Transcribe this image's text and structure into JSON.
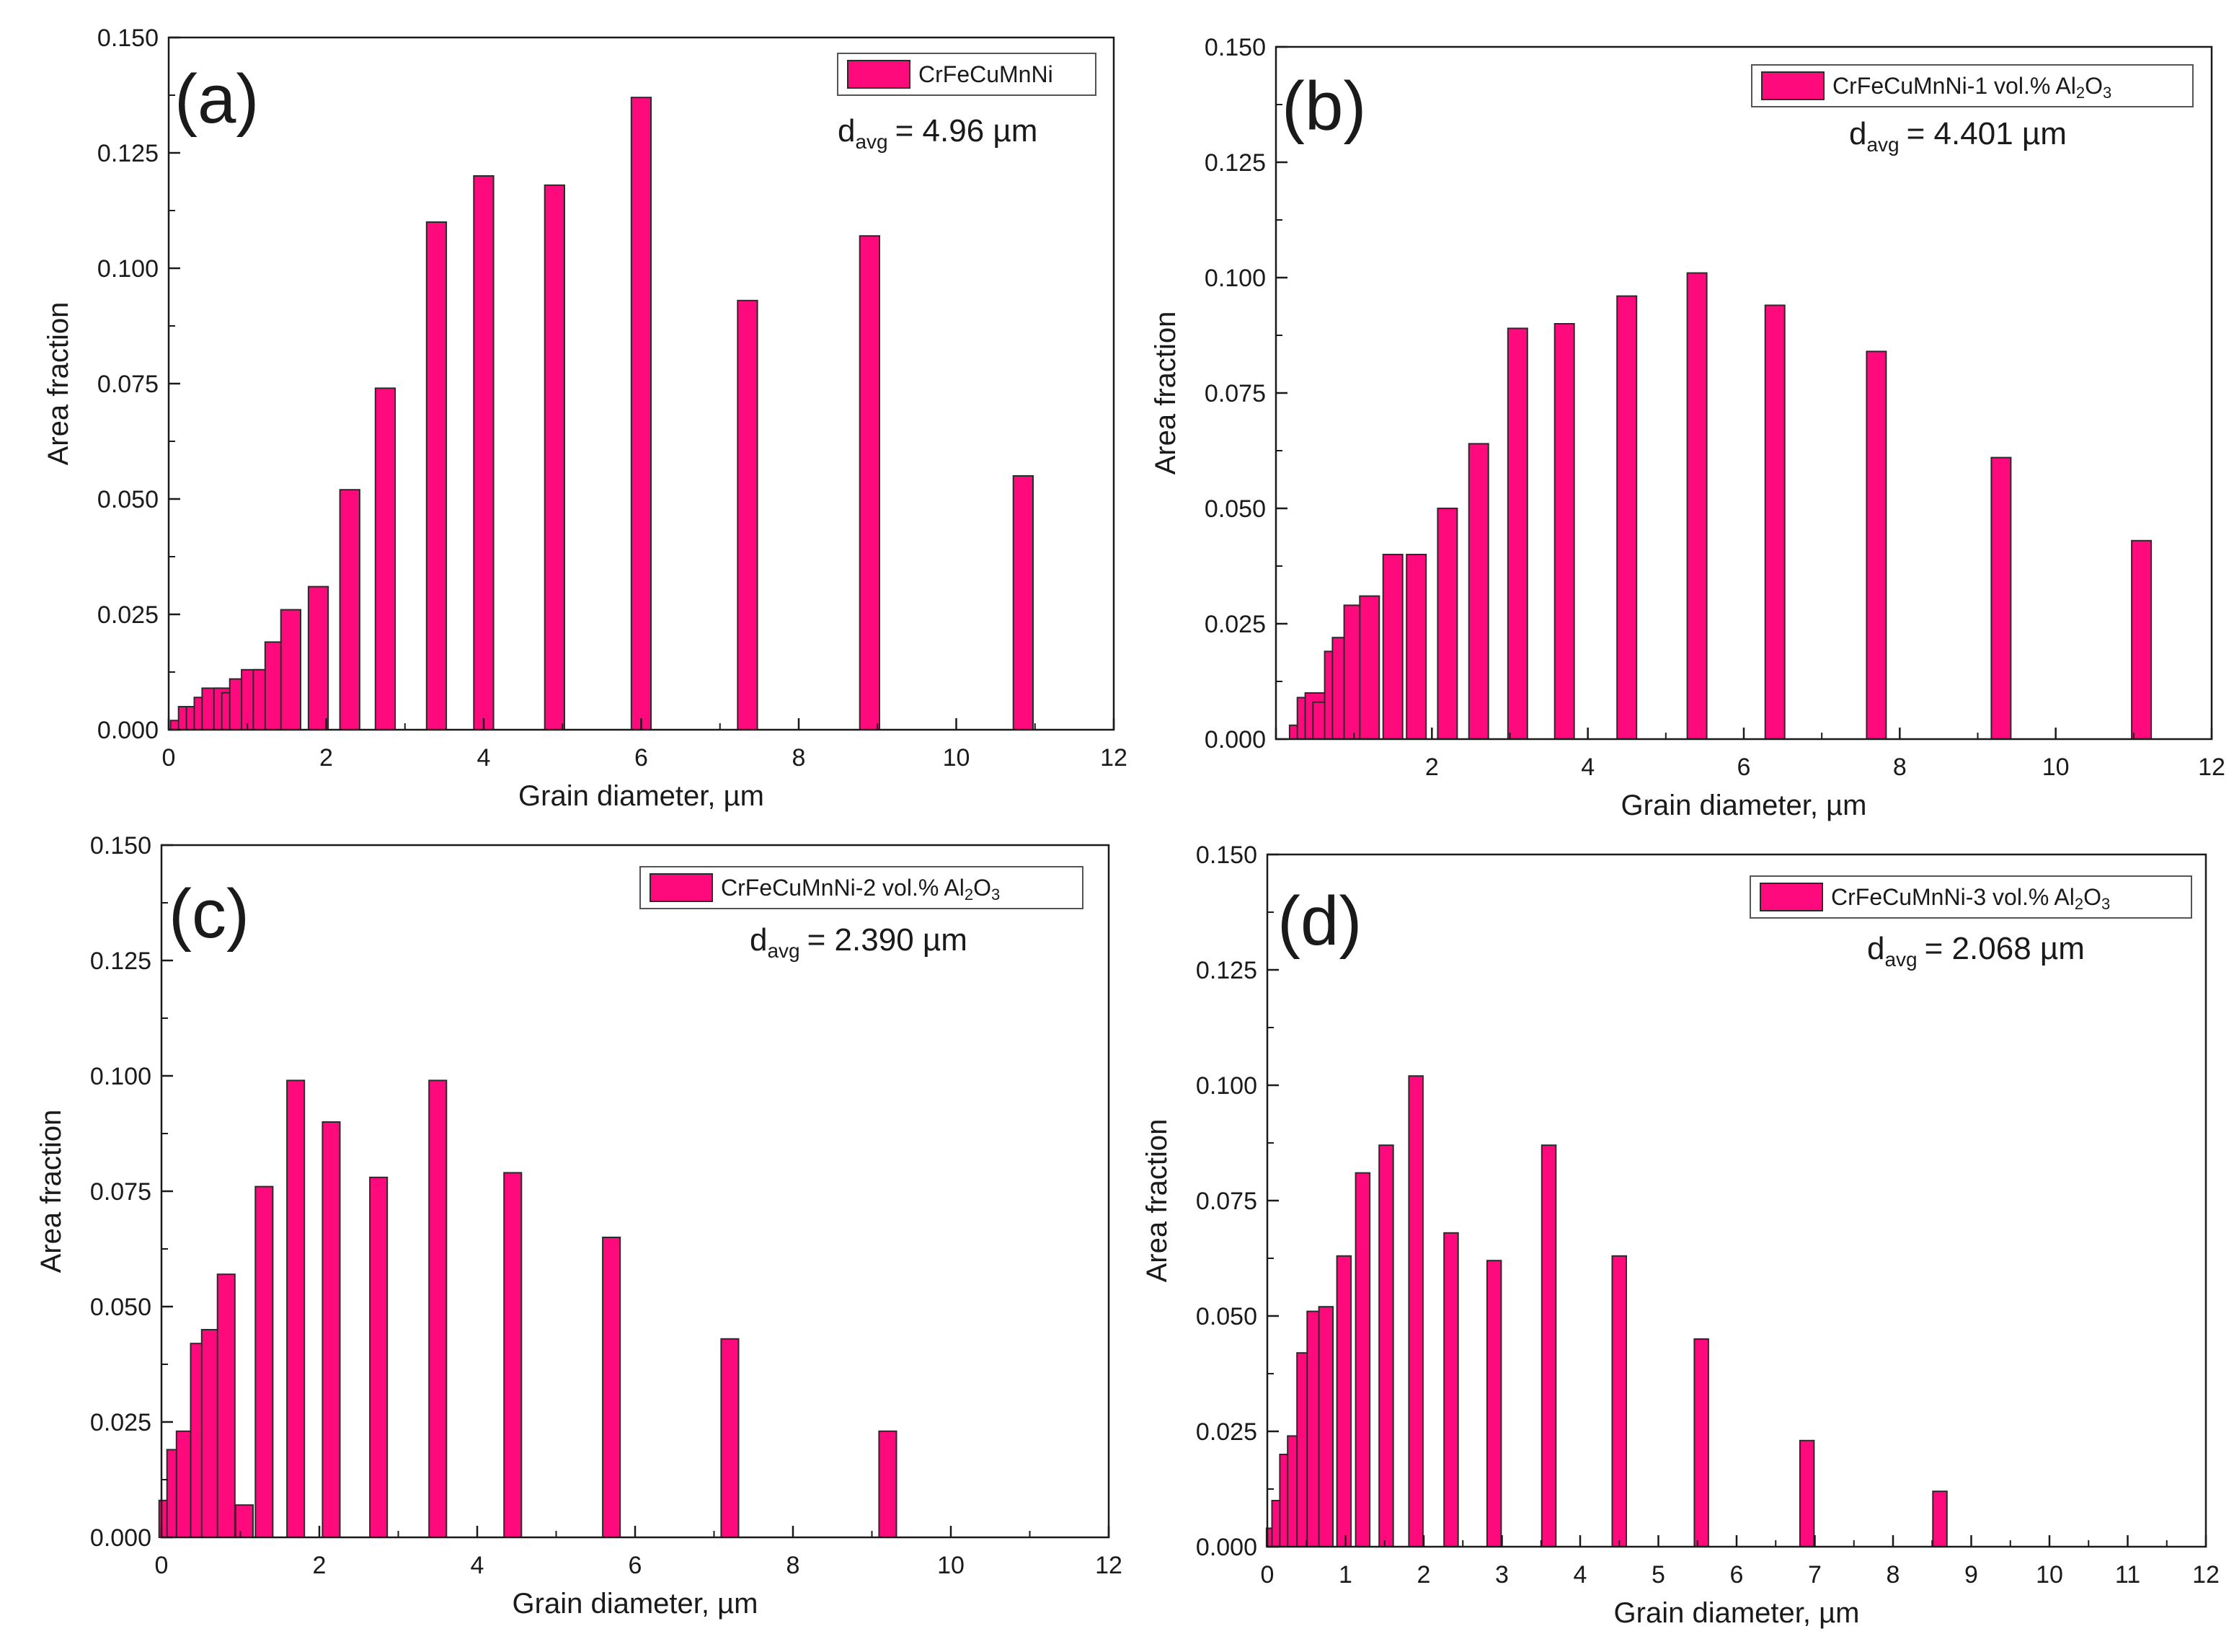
{
  "colors": {
    "bar": "#ff0a7d",
    "bar_stroke": "#2a2a2a",
    "axis": "#1a1a1a",
    "background": "#ffffff"
  },
  "chart_data": [
    {
      "type": "bar",
      "panel": "(a)",
      "legend": "CrFeCuMnNi",
      "legend_sub": "",
      "davg_prefix": "d",
      "davg_sub": "avg",
      "davg_value": "= 4.96 µm",
      "xlabel": "Grain diameter, µm",
      "ylabel": "Area fraction",
      "xlim": [
        0,
        12
      ],
      "ylim": [
        0,
        0.15
      ],
      "xticks": [
        "0",
        "2",
        "4",
        "6",
        "8",
        "10",
        "12"
      ],
      "yticks": [
        "0.000",
        "0.025",
        "0.050",
        "0.075",
        "0.100",
        "0.125",
        "0.150"
      ],
      "bar_width": 0.25,
      "bars": [
        {
          "x": 0.15,
          "y": 0.002
        },
        {
          "x": 0.25,
          "y": 0.005
        },
        {
          "x": 0.35,
          "y": 0.005
        },
        {
          "x": 0.45,
          "y": 0.007
        },
        {
          "x": 0.55,
          "y": 0.009
        },
        {
          "x": 0.7,
          "y": 0.009
        },
        {
          "x": 0.8,
          "y": 0.008
        },
        {
          "x": 0.9,
          "y": 0.011
        },
        {
          "x": 1.05,
          "y": 0.013
        },
        {
          "x": 1.2,
          "y": 0.013
        },
        {
          "x": 1.35,
          "y": 0.019
        },
        {
          "x": 1.55,
          "y": 0.026
        },
        {
          "x": 1.9,
          "y": 0.031
        },
        {
          "x": 2.3,
          "y": 0.052
        },
        {
          "x": 2.75,
          "y": 0.074
        },
        {
          "x": 3.4,
          "y": 0.11
        },
        {
          "x": 4.0,
          "y": 0.12
        },
        {
          "x": 4.9,
          "y": 0.118
        },
        {
          "x": 6.0,
          "y": 0.137
        },
        {
          "x": 7.35,
          "y": 0.093
        },
        {
          "x": 8.9,
          "y": 0.107
        },
        {
          "x": 10.85,
          "y": 0.055
        }
      ]
    },
    {
      "type": "bar",
      "panel": "(b)",
      "legend": "CrFeCuMnNi-1 vol.% Al",
      "legend_sub": "2",
      "legend_tail": "O",
      "legend_sub2": "3",
      "davg_prefix": "d",
      "davg_sub": "avg",
      "davg_value": "= 4.401 µm",
      "xlabel": "Grain diameter, µm",
      "ylabel": "Area fraction",
      "xlim": [
        0,
        12
      ],
      "ylim": [
        0,
        0.15
      ],
      "xticks": [
        "",
        "2",
        "4",
        "6",
        "8",
        "10",
        "12"
      ],
      "yticks": [
        "0.000",
        "0.025",
        "0.050",
        "0.075",
        "0.100",
        "0.125",
        "0.150"
      ],
      "bar_width": 0.25,
      "bars": [
        {
          "x": 0.3,
          "y": 0.003
        },
        {
          "x": 0.4,
          "y": 0.009
        },
        {
          "x": 0.5,
          "y": 0.01
        },
        {
          "x": 0.6,
          "y": 0.008
        },
        {
          "x": 0.75,
          "y": 0.019
        },
        {
          "x": 0.85,
          "y": 0.022
        },
        {
          "x": 1.0,
          "y": 0.029
        },
        {
          "x": 1.2,
          "y": 0.031
        },
        {
          "x": 1.5,
          "y": 0.04
        },
        {
          "x": 1.8,
          "y": 0.04
        },
        {
          "x": 2.2,
          "y": 0.05
        },
        {
          "x": 2.6,
          "y": 0.064
        },
        {
          "x": 3.1,
          "y": 0.089
        },
        {
          "x": 3.7,
          "y": 0.09
        },
        {
          "x": 4.5,
          "y": 0.096
        },
        {
          "x": 5.4,
          "y": 0.101
        },
        {
          "x": 6.4,
          "y": 0.094
        },
        {
          "x": 7.7,
          "y": 0.084
        },
        {
          "x": 9.3,
          "y": 0.061
        },
        {
          "x": 11.1,
          "y": 0.043
        }
      ]
    },
    {
      "type": "bar",
      "panel": "(c)",
      "legend": "CrFeCuMnNi-2 vol.% Al",
      "legend_sub": "2",
      "legend_tail": "O",
      "legend_sub2": "3",
      "davg_prefix": "d",
      "davg_sub": "avg",
      "davg_value": "= 2.390 µm",
      "xlabel": "Grain diameter, µm",
      "ylabel": "Area fraction",
      "xlim": [
        0,
        12
      ],
      "ylim": [
        0,
        0.15
      ],
      "xticks": [
        "0",
        "2",
        "4",
        "6",
        "8",
        "10",
        "12"
      ],
      "yticks": [
        "0.000",
        "0.025",
        "0.050",
        "0.075",
        "0.100",
        "0.125",
        "0.150"
      ],
      "bar_width": 0.22,
      "bars": [
        {
          "x": 0.08,
          "y": 0.008
        },
        {
          "x": 0.18,
          "y": 0.019
        },
        {
          "x": 0.3,
          "y": 0.023
        },
        {
          "x": 0.48,
          "y": 0.042
        },
        {
          "x": 0.62,
          "y": 0.045
        },
        {
          "x": 0.82,
          "y": 0.057
        },
        {
          "x": 1.05,
          "y": 0.007
        },
        {
          "x": 1.3,
          "y": 0.076
        },
        {
          "x": 1.7,
          "y": 0.099
        },
        {
          "x": 2.15,
          "y": 0.09
        },
        {
          "x": 2.75,
          "y": 0.078
        },
        {
          "x": 3.5,
          "y": 0.099
        },
        {
          "x": 4.45,
          "y": 0.079
        },
        {
          "x": 5.7,
          "y": 0.065
        },
        {
          "x": 7.2,
          "y": 0.043
        },
        {
          "x": 9.2,
          "y": 0.023
        }
      ]
    },
    {
      "type": "bar",
      "panel": "(d)",
      "legend": "CrFeCuMnNi-3 vol.% Al",
      "legend_sub": "2",
      "legend_tail": "O",
      "legend_sub2": "3",
      "davg_prefix": "d",
      "davg_sub": "avg",
      "davg_value": "= 2.068 µm",
      "xlabel": "Grain diameter, µm",
      "ylabel": "Area fraction",
      "xlim": [
        0,
        12
      ],
      "ylim": [
        0,
        0.15
      ],
      "xticks": [
        "0",
        "1",
        "2",
        "3",
        "4",
        "5",
        "6",
        "7",
        "8",
        "9",
        "10",
        "11",
        "12"
      ],
      "yticks": [
        "0.000",
        "0.025",
        "0.050",
        "0.075",
        "0.100",
        "0.125",
        "0.150"
      ],
      "bar_width": 0.18,
      "bars": [
        {
          "x": 0.08,
          "y": 0.004
        },
        {
          "x": 0.15,
          "y": 0.01
        },
        {
          "x": 0.25,
          "y": 0.02
        },
        {
          "x": 0.35,
          "y": 0.024
        },
        {
          "x": 0.47,
          "y": 0.042
        },
        {
          "x": 0.6,
          "y": 0.051
        },
        {
          "x": 0.75,
          "y": 0.052
        },
        {
          "x": 0.98,
          "y": 0.063
        },
        {
          "x": 1.22,
          "y": 0.081
        },
        {
          "x": 1.52,
          "y": 0.087
        },
        {
          "x": 1.9,
          "y": 0.102
        },
        {
          "x": 2.35,
          "y": 0.068
        },
        {
          "x": 2.9,
          "y": 0.062
        },
        {
          "x": 3.6,
          "y": 0.087
        },
        {
          "x": 4.5,
          "y": 0.063
        },
        {
          "x": 5.55,
          "y": 0.045
        },
        {
          "x": 6.9,
          "y": 0.023
        },
        {
          "x": 8.6,
          "y": 0.012
        }
      ]
    }
  ]
}
